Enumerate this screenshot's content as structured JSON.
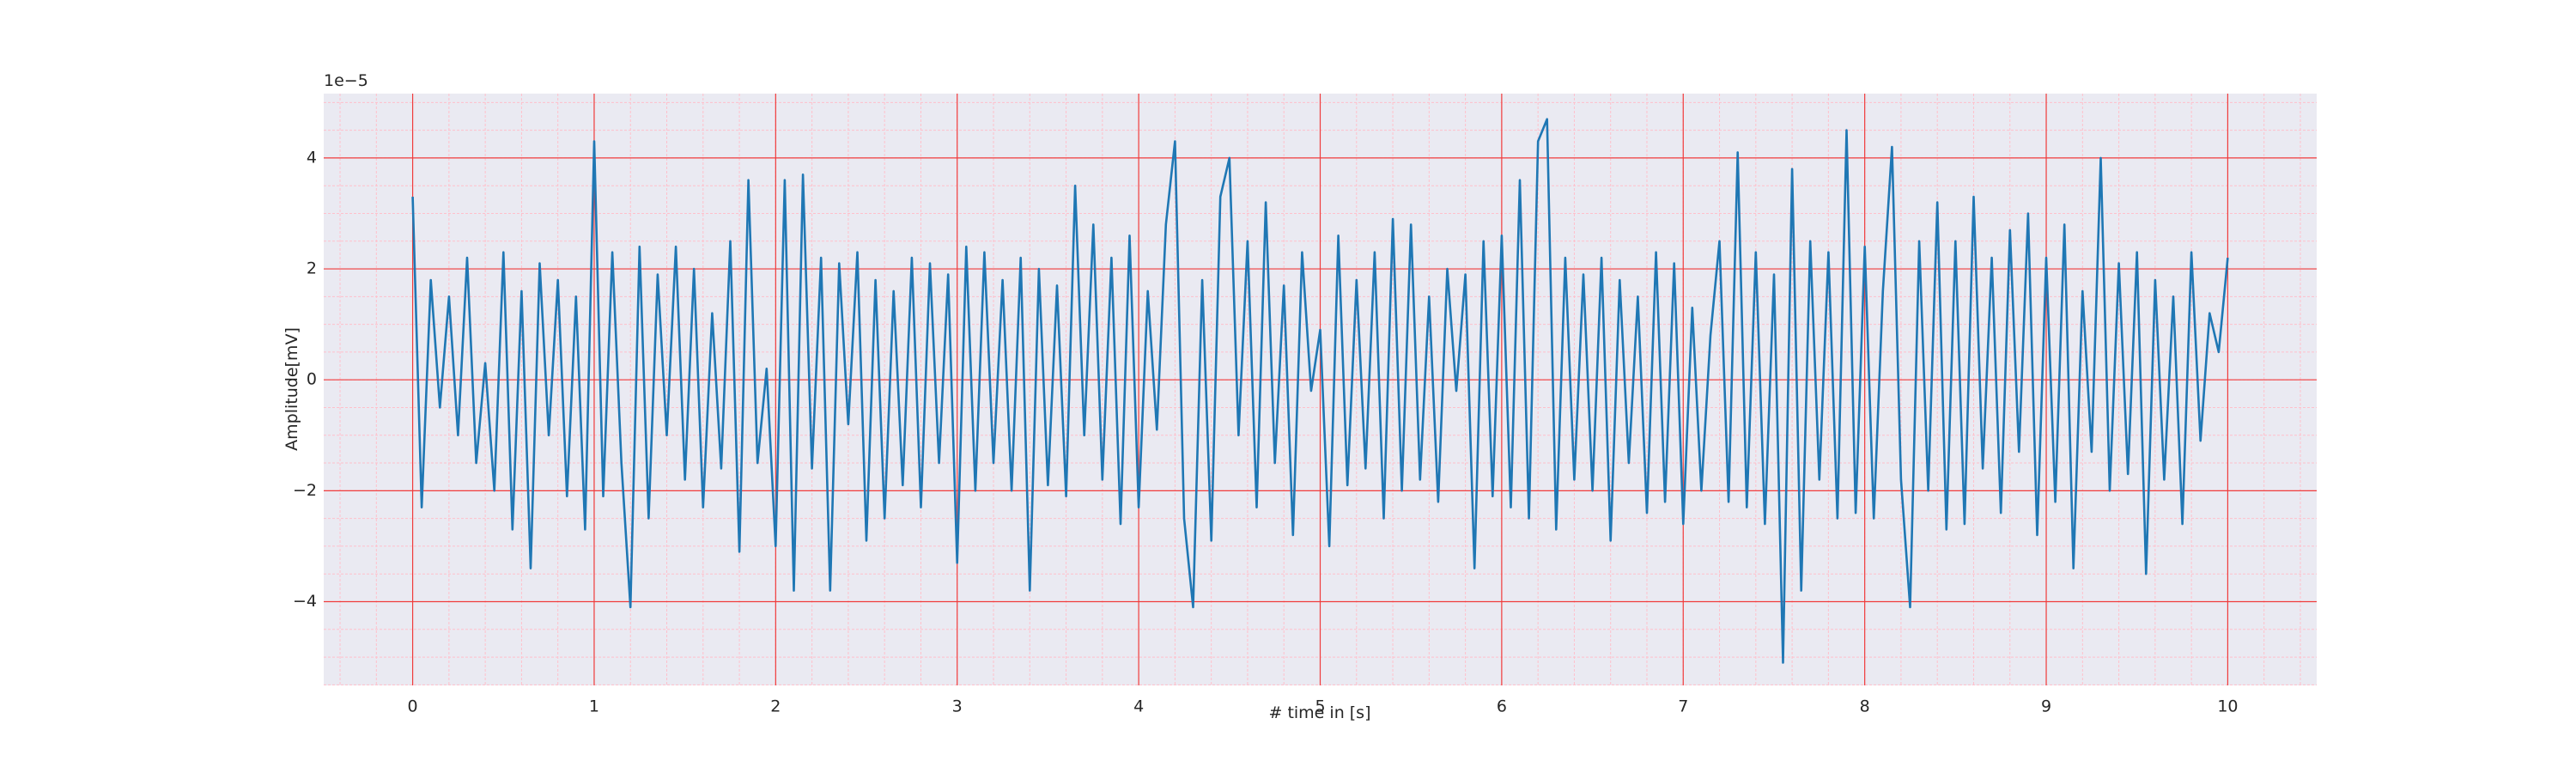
{
  "chart_data": {
    "type": "line",
    "xlabel": "# time in [s]",
    "ylabel": "Amplitude[mV]",
    "offset_text": "1e−5",
    "color": "#1f77b4",
    "grid": true,
    "minor_grid": true,
    "xlim": [
      -0.49,
      10.49
    ],
    "ylim": [
      -5.51,
      5.16
    ],
    "xticks": [
      0,
      1,
      2,
      3,
      4,
      5,
      6,
      7,
      8,
      9,
      10
    ],
    "yticks": [
      {
        "value": -4,
        "label": "−4"
      },
      {
        "value": -2,
        "label": "−2"
      },
      0,
      2,
      4
    ],
    "x": [
      0,
      0.05,
      0.1,
      0.15,
      0.2,
      0.25,
      0.3,
      0.35,
      0.4,
      0.45,
      0.5,
      0.55,
      0.6,
      0.65,
      0.7,
      0.75,
      0.8,
      0.85,
      0.9,
      0.95,
      1,
      1.05,
      1.1,
      1.15,
      1.2,
      1.25,
      1.3,
      1.35,
      1.4,
      1.45,
      1.5,
      1.55,
      1.6,
      1.65,
      1.7,
      1.75,
      1.8,
      1.85,
      1.9,
      1.95,
      2,
      2.05,
      2.1,
      2.15,
      2.2,
      2.25,
      2.3,
      2.35,
      2.4,
      2.45,
      2.5,
      2.55,
      2.6,
      2.65,
      2.7,
      2.75,
      2.8,
      2.85,
      2.9,
      2.95,
      3,
      3.05,
      3.1,
      3.15,
      3.2,
      3.25,
      3.3,
      3.35,
      3.4,
      3.45,
      3.5,
      3.55,
      3.6,
      3.65,
      3.7,
      3.75,
      3.8,
      3.85,
      3.9,
      3.95,
      4,
      4.05,
      4.1,
      4.15,
      4.2,
      4.25,
      4.3,
      4.35,
      4.4,
      4.45,
      4.5,
      4.55,
      4.6,
      4.65,
      4.7,
      4.75,
      4.8,
      4.85,
      4.9,
      4.95,
      5,
      5.05,
      5.1,
      5.15,
      5.2,
      5.25,
      5.3,
      5.35,
      5.4,
      5.45,
      5.5,
      5.55,
      5.6,
      5.65,
      5.7,
      5.75,
      5.8,
      5.85,
      5.9,
      5.95,
      6,
      6.05,
      6.1,
      6.15,
      6.2,
      6.25,
      6.3,
      6.35,
      6.4,
      6.45,
      6.5,
      6.55,
      6.6,
      6.65,
      6.7,
      6.75,
      6.8,
      6.85,
      6.9,
      6.95,
      7,
      7.05,
      7.1,
      7.15,
      7.2,
      7.25,
      7.3,
      7.35,
      7.4,
      7.45,
      7.5,
      7.55,
      7.6,
      7.65,
      7.7,
      7.75,
      7.8,
      7.85,
      7.9,
      7.95,
      8,
      8.05,
      8.1,
      8.15,
      8.2,
      8.25,
      8.3,
      8.35,
      8.4,
      8.45,
      8.5,
      8.55,
      8.6,
      8.65,
      8.7,
      8.75,
      8.8,
      8.85,
      8.9,
      8.95,
      9,
      9.05,
      9.1,
      9.15,
      9.2,
      9.25,
      9.3,
      9.35,
      9.4,
      9.45,
      9.5,
      9.55,
      9.6,
      9.65,
      9.7,
      9.75,
      9.8,
      9.85,
      9.9,
      9.95,
      10
    ],
    "values": [
      3.3,
      -2.3,
      1.8,
      -0.5,
      1.5,
      -1.0,
      2.2,
      -1.5,
      0.3,
      -2.0,
      2.3,
      -2.7,
      1.6,
      -3.4,
      2.1,
      -1.0,
      1.8,
      -2.1,
      1.5,
      -2.7,
      4.3,
      -2.1,
      2.3,
      -1.5,
      -4.1,
      2.4,
      -2.5,
      1.9,
      -1.0,
      2.4,
      -1.8,
      2.0,
      -2.3,
      1.2,
      -1.6,
      2.5,
      -3.1,
      3.6,
      -1.5,
      0.2,
      -3.0,
      3.6,
      -3.8,
      3.7,
      -1.6,
      2.2,
      -3.8,
      2.1,
      -0.8,
      2.3,
      -2.9,
      1.8,
      -2.5,
      1.6,
      -1.9,
      2.2,
      -2.3,
      2.1,
      -1.5,
      1.9,
      -3.3,
      2.4,
      -2.0,
      2.3,
      -1.5,
      1.8,
      -2.0,
      2.2,
      -3.8,
      2.0,
      -1.9,
      1.7,
      -2.1,
      3.5,
      -1.0,
      2.8,
      -1.8,
      2.2,
      -2.6,
      2.6,
      -2.3,
      1.6,
      -0.9,
      2.8,
      4.3,
      -2.5,
      -4.1,
      1.8,
      -2.9,
      3.3,
      4.0,
      -1.0,
      2.5,
      -2.3,
      3.2,
      -1.5,
      1.7,
      -2.8,
      2.3,
      -0.2,
      0.9,
      -3.0,
      2.6,
      -1.9,
      1.8,
      -1.6,
      2.3,
      -2.5,
      2.9,
      -2.0,
      2.8,
      -1.8,
      1.5,
      -2.2,
      2.0,
      -0.2,
      1.9,
      -3.4,
      2.5,
      -2.1,
      2.6,
      -2.3,
      3.6,
      -2.5,
      4.3,
      4.7,
      -2.7,
      2.2,
      -1.8,
      1.9,
      -2.0,
      2.2,
      -2.9,
      1.8,
      -1.5,
      1.5,
      -2.4,
      2.3,
      -2.2,
      2.1,
      -2.6,
      1.3,
      -2.0,
      0.8,
      2.5,
      -2.2,
      4.1,
      -2.3,
      2.3,
      -2.6,
      1.9,
      -5.1,
      3.8,
      -3.8,
      2.5,
      -1.8,
      2.3,
      -2.5,
      4.5,
      -2.4,
      2.4,
      -2.5,
      1.6,
      4.2,
      -1.8,
      -4.1,
      2.5,
      -2.0,
      3.2,
      -2.7,
      2.5,
      -2.6,
      3.3,
      -1.6,
      2.2,
      -2.4,
      2.7,
      -1.3,
      3.0,
      -2.8,
      2.2,
      -2.2,
      2.8,
      -3.4,
      1.6,
      -1.3,
      4.0,
      -2.0,
      2.1,
      -1.7,
      2.3,
      -3.5,
      1.8,
      -1.8,
      1.5,
      -2.6,
      2.3,
      -1.1,
      1.2,
      0.5,
      2.2
    ]
  }
}
